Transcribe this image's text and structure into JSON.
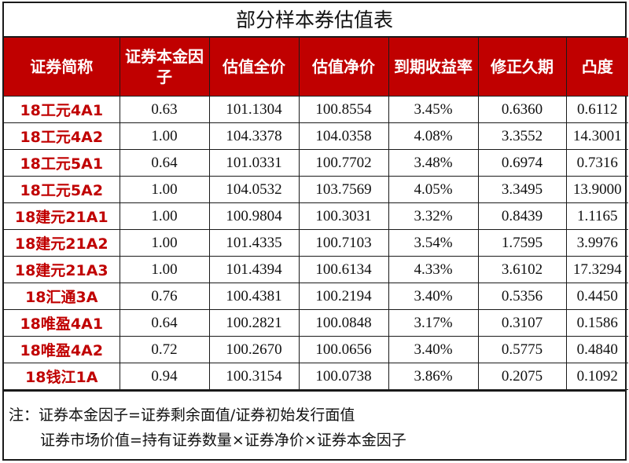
{
  "title": "部分样本券估值表",
  "columns": [
    "证券简称",
    "证券本金因子",
    "估值全价",
    "估值净价",
    "到期收益率",
    "修正久期",
    "凸度"
  ],
  "rows": [
    {
      "name": "18工元4A1",
      "factor": "0.63",
      "full_price": "101.1304",
      "net_price": "100.8554",
      "ytm": "3.45%",
      "duration": "0.6360",
      "convexity": "0.6112"
    },
    {
      "name": "18工元4A2",
      "factor": "1.00",
      "full_price": "104.3378",
      "net_price": "104.0358",
      "ytm": "4.08%",
      "duration": "3.3552",
      "convexity": "14.3001"
    },
    {
      "name": "18工元5A1",
      "factor": "0.64",
      "full_price": "101.0331",
      "net_price": "100.7702",
      "ytm": "3.48%",
      "duration": "0.6974",
      "convexity": "0.7316"
    },
    {
      "name": "18工元5A2",
      "factor": "1.00",
      "full_price": "104.0532",
      "net_price": "103.7569",
      "ytm": "4.05%",
      "duration": "3.3495",
      "convexity": "13.9000"
    },
    {
      "name": "18建元21A1",
      "factor": "1.00",
      "full_price": "100.9804",
      "net_price": "100.3031",
      "ytm": "3.32%",
      "duration": "0.8439",
      "convexity": "1.1165"
    },
    {
      "name": "18建元21A2",
      "factor": "1.00",
      "full_price": "101.4335",
      "net_price": "100.7103",
      "ytm": "3.54%",
      "duration": "1.7595",
      "convexity": "3.9976"
    },
    {
      "name": "18建元21A3",
      "factor": "1.00",
      "full_price": "101.4394",
      "net_price": "100.6134",
      "ytm": "4.33%",
      "duration": "3.6102",
      "convexity": "17.3294"
    },
    {
      "name": "18汇通3A",
      "factor": "0.76",
      "full_price": "100.4381",
      "net_price": "100.2194",
      "ytm": "3.40%",
      "duration": "0.5356",
      "convexity": "0.4450"
    },
    {
      "name": "18唯盈4A1",
      "factor": "0.64",
      "full_price": "100.2821",
      "net_price": "100.0848",
      "ytm": "3.17%",
      "duration": "0.3107",
      "convexity": "0.1586"
    },
    {
      "name": "18唯盈4A2",
      "factor": "0.72",
      "full_price": "100.2670",
      "net_price": "100.0656",
      "ytm": "3.40%",
      "duration": "0.5775",
      "convexity": "0.4840"
    },
    {
      "name": "18钱江1A",
      "factor": "0.94",
      "full_price": "100.3154",
      "net_price": "100.0738",
      "ytm": "3.86%",
      "duration": "0.2075",
      "convexity": "0.1092"
    }
  ],
  "notes": [
    "注：证券本金因子=证券剩余面值/证券初始发行面值",
    "证券市场价值=持有证券数量×证券净价×证券本金因子"
  ],
  "colors": {
    "header_bg": "#c00000",
    "name_text": "#c00000",
    "border": "#1a1a1a"
  }
}
